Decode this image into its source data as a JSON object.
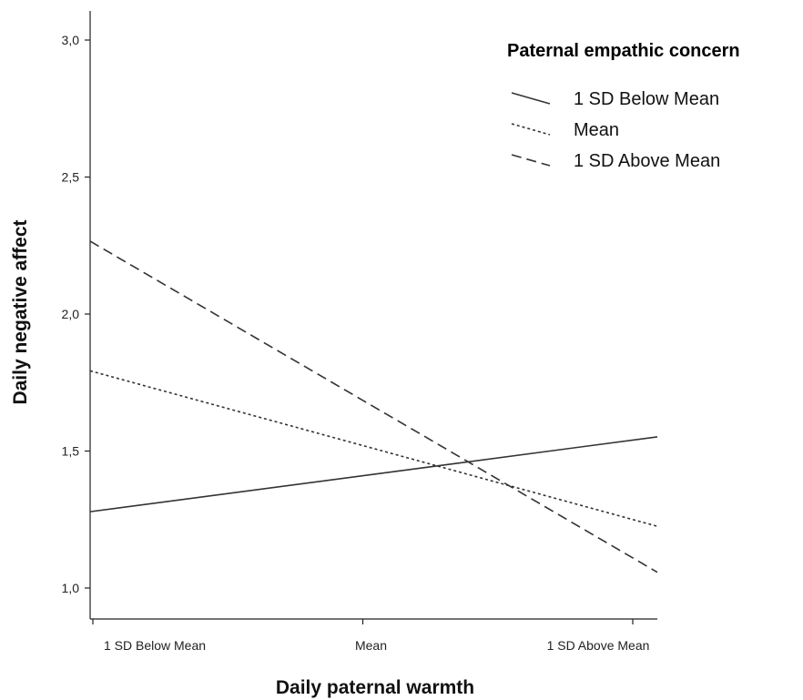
{
  "chart_data": {
    "type": "line",
    "xlabel": "Daily paternal warmth",
    "ylabel": "Daily negative affect",
    "categories": [
      "1 SD Below Mean",
      "Mean",
      "1 SD Above Mean"
    ],
    "y_ticks": [
      "1,0",
      "1,5",
      "2,0",
      "2,5",
      "3,0"
    ],
    "ylim": [
      1.0,
      3.0
    ],
    "legend": {
      "title": "Paternal empathic concern",
      "placement": "top-right"
    },
    "series": [
      {
        "name": "1 SD Below Mean",
        "style": "solid",
        "values": [
          1.28,
          1.41,
          1.54
        ]
      },
      {
        "name": "Mean",
        "style": "dotted",
        "values": [
          1.79,
          1.52,
          1.25
        ]
      },
      {
        "name": "1 SD Above Mean",
        "style": "dashed",
        "values": [
          2.26,
          1.685,
          1.11
        ]
      }
    ],
    "line_color": "#333333",
    "grid": false
  }
}
